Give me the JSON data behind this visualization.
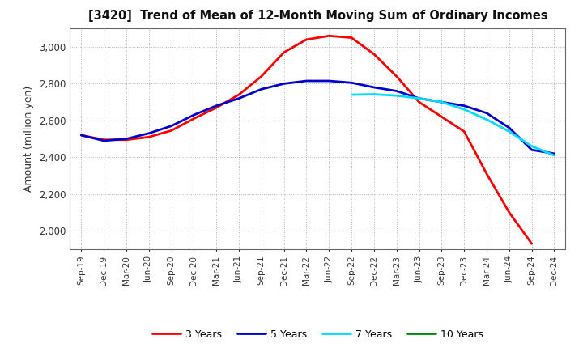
{
  "title": "[3420]  Trend of Mean of 12-Month Moving Sum of Ordinary Incomes",
  "ylabel": "Amount (million yen)",
  "ylim": [
    1900,
    3100
  ],
  "yticks": [
    2000,
    2200,
    2400,
    2600,
    2800,
    3000
  ],
  "background_color": "#ffffff",
  "grid_color": "#aaaaaa",
  "x_labels": [
    "Sep-19",
    "Dec-19",
    "Mar-20",
    "Jun-20",
    "Sep-20",
    "Dec-20",
    "Mar-21",
    "Jun-21",
    "Sep-21",
    "Dec-21",
    "Mar-22",
    "Jun-22",
    "Sep-22",
    "Dec-22",
    "Mar-23",
    "Jun-23",
    "Sep-23",
    "Dec-23",
    "Mar-24",
    "Jun-24",
    "Sep-24",
    "Dec-24"
  ],
  "series": [
    {
      "label": "3 Years",
      "color": "#ff0000",
      "linewidth": 2.0,
      "data": [
        2520,
        2495,
        2495,
        2510,
        2545,
        2610,
        2670,
        2740,
        2840,
        2970,
        3040,
        3060,
        3050,
        2960,
        2840,
        2700,
        2620,
        2540,
        2310,
        2100,
        1930,
        null
      ]
    },
    {
      "label": "5 Years",
      "color": "#0000cc",
      "linewidth": 2.0,
      "data": [
        2520,
        2490,
        2500,
        2530,
        2570,
        2630,
        2680,
        2720,
        2770,
        2800,
        2815,
        2815,
        2805,
        2780,
        2760,
        2720,
        2700,
        2680,
        2640,
        2560,
        2440,
        2420
      ]
    },
    {
      "label": "7 Years",
      "color": "#00ddff",
      "linewidth": 2.0,
      "data": [
        null,
        null,
        null,
        null,
        null,
        null,
        null,
        null,
        null,
        null,
        null,
        null,
        2740,
        2742,
        2735,
        2720,
        2700,
        2660,
        2605,
        2540,
        2460,
        2410
      ]
    },
    {
      "label": "10 Years",
      "color": "#008800",
      "linewidth": 2.0,
      "data": [
        null,
        null,
        null,
        null,
        null,
        null,
        null,
        null,
        null,
        null,
        null,
        null,
        null,
        null,
        null,
        null,
        null,
        null,
        null,
        null,
        null,
        null
      ]
    }
  ],
  "legend_loc": "lower center",
  "legend_ncol": 4
}
